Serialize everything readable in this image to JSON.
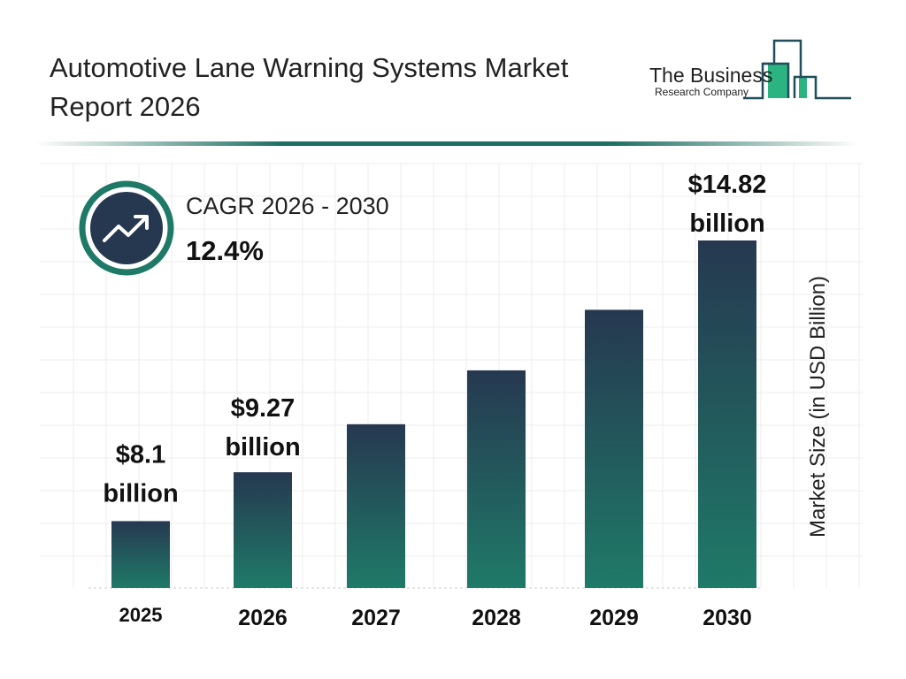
{
  "header": {
    "title": "Automotive Lane Warning Systems Market Report 2026"
  },
  "logo": {
    "line1": "The Business",
    "line2": "Research Company"
  },
  "cagr": {
    "label": "CAGR 2026 - 2030",
    "value": "12.4%",
    "icon": "trending-up-icon"
  },
  "colors": {
    "bar_top": "#263850",
    "bar_bottom": "#1f7a68",
    "accent": "#1e6e62",
    "logo_green": "#2bb381"
  },
  "chart_data": {
    "type": "bar",
    "title": "Automotive Lane Warning Systems Market Report 2026",
    "categories": [
      "2025",
      "2026",
      "2027",
      "2028",
      "2029",
      "2030"
    ],
    "values": [
      8.1,
      9.27,
      10.42,
      11.71,
      13.16,
      14.82
    ],
    "data_labels": [
      [
        "$8.1",
        "billion"
      ],
      [
        "$9.27",
        "billion"
      ],
      null,
      null,
      null,
      [
        "$14.82",
        "billion"
      ]
    ],
    "xlabel": "",
    "ylabel": "Market Size (in USD Billion)",
    "grid": true
  }
}
